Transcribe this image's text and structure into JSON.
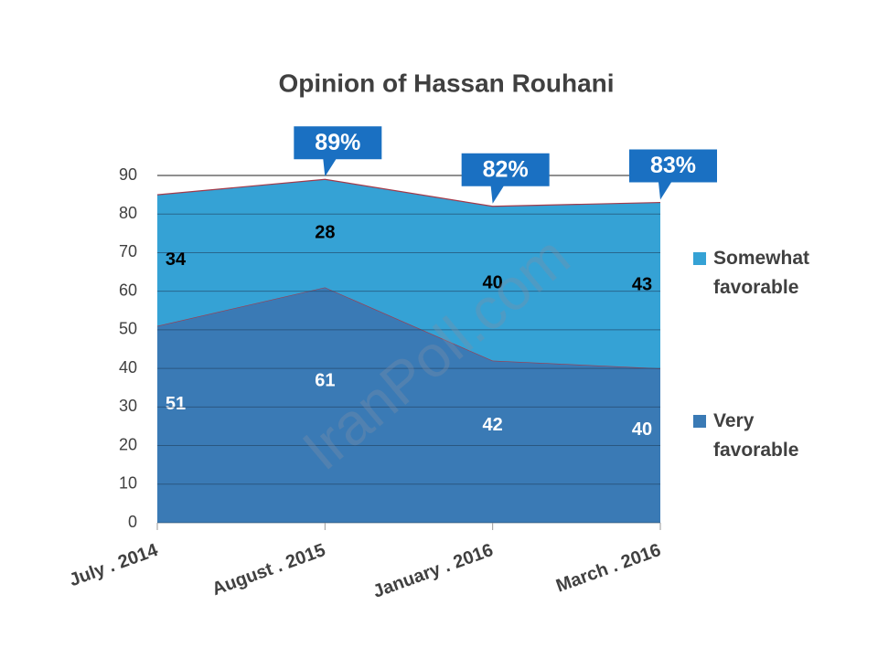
{
  "chart_data": {
    "type": "stacked_area",
    "title": "Opinion of Hassan Rouhani",
    "categories": [
      "July . 2014",
      "August . 2015",
      "January . 2016",
      "March . 2016"
    ],
    "series": [
      {
        "name": "Very favorable",
        "color": "#3a7ab5",
        "values": [
          51,
          61,
          42,
          40
        ]
      },
      {
        "name": "Somewhat favorable",
        "color": "#35a2d5",
        "values": [
          34,
          28,
          40,
          43
        ]
      }
    ],
    "ylim": [
      0,
      90
    ],
    "yticks": [
      0,
      10,
      20,
      30,
      40,
      50,
      60,
      70,
      80,
      90
    ],
    "grid": true,
    "legend": "right",
    "callouts": [
      {
        "category": "August . 2015",
        "value": 89,
        "label": "89%"
      },
      {
        "category": "January . 2016",
        "value": 82,
        "label": "82%"
      },
      {
        "category": "March . 2016",
        "value": 83,
        "label": "83%"
      }
    ],
    "watermark": "IranPoll.com"
  }
}
